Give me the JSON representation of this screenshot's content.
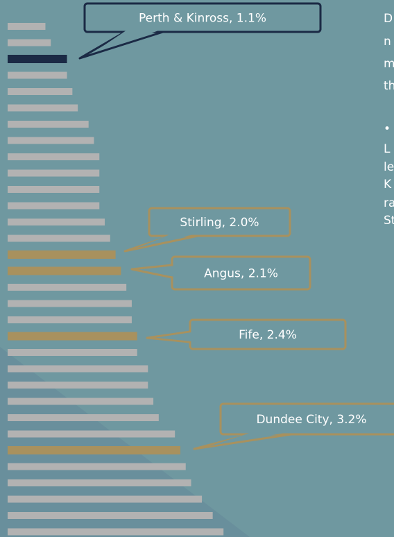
{
  "chart_data": {
    "type": "bar",
    "categories": [
      null,
      null,
      null,
      null,
      null,
      null,
      null,
      null,
      null,
      null,
      null,
      null,
      null,
      null,
      null,
      null,
      null,
      null,
      null,
      null,
      null,
      null,
      null,
      null,
      null,
      null,
      null,
      null,
      null,
      null,
      null,
      null
    ],
    "values": [
      0.7,
      0.8,
      1.1,
      1.1,
      1.2,
      1.3,
      1.5,
      1.6,
      1.7,
      1.7,
      1.7,
      1.7,
      1.8,
      1.9,
      2.0,
      2.1,
      2.2,
      2.3,
      2.3,
      2.4,
      2.4,
      2.6,
      2.6,
      2.7,
      2.8,
      3.1,
      3.2,
      3.3,
      3.4,
      3.6,
      3.8,
      4.0
    ],
    "value_labels": [
      null,
      null,
      "Perth & Kinross,  1.1%",
      null,
      null,
      null,
      null,
      null,
      null,
      null,
      null,
      null,
      null,
      null,
      "Stirling,  2.0%",
      "Angus,  2.1%",
      null,
      null,
      null,
      "Fife,  2.4%",
      null,
      null,
      null,
      null,
      null,
      null,
      "Dundee City,  3.2%",
      null,
      null,
      null,
      null,
      null
    ],
    "colors": [
      "#b2b2b2",
      "#b2b2b2",
      "#1b2a45",
      "#b2b2b2",
      "#b2b2b2",
      "#b2b2b2",
      "#b2b2b2",
      "#b2b2b2",
      "#b2b2b2",
      "#b2b2b2",
      "#b2b2b2",
      "#b2b2b2",
      "#b2b2b2",
      "#b2b2b2",
      "#a8915e",
      "#a8915e",
      "#b2b2b2",
      "#b2b2b2",
      "#b2b2b2",
      "#a8915e",
      "#b2b2b2",
      "#b2b2b2",
      "#b2b2b2",
      "#b2b2b2",
      "#b2b2b2",
      "#b2b2b2",
      "#a8915e",
      "#b2b2b2",
      "#b2b2b2",
      "#b2b2b2",
      "#b2b2b2",
      "#b2b2b2"
    ],
    "side_text": [
      "D",
      "n",
      "m",
      "th",
      "•",
      "L",
      "le",
      "K",
      "ra",
      "St"
    ]
  }
}
